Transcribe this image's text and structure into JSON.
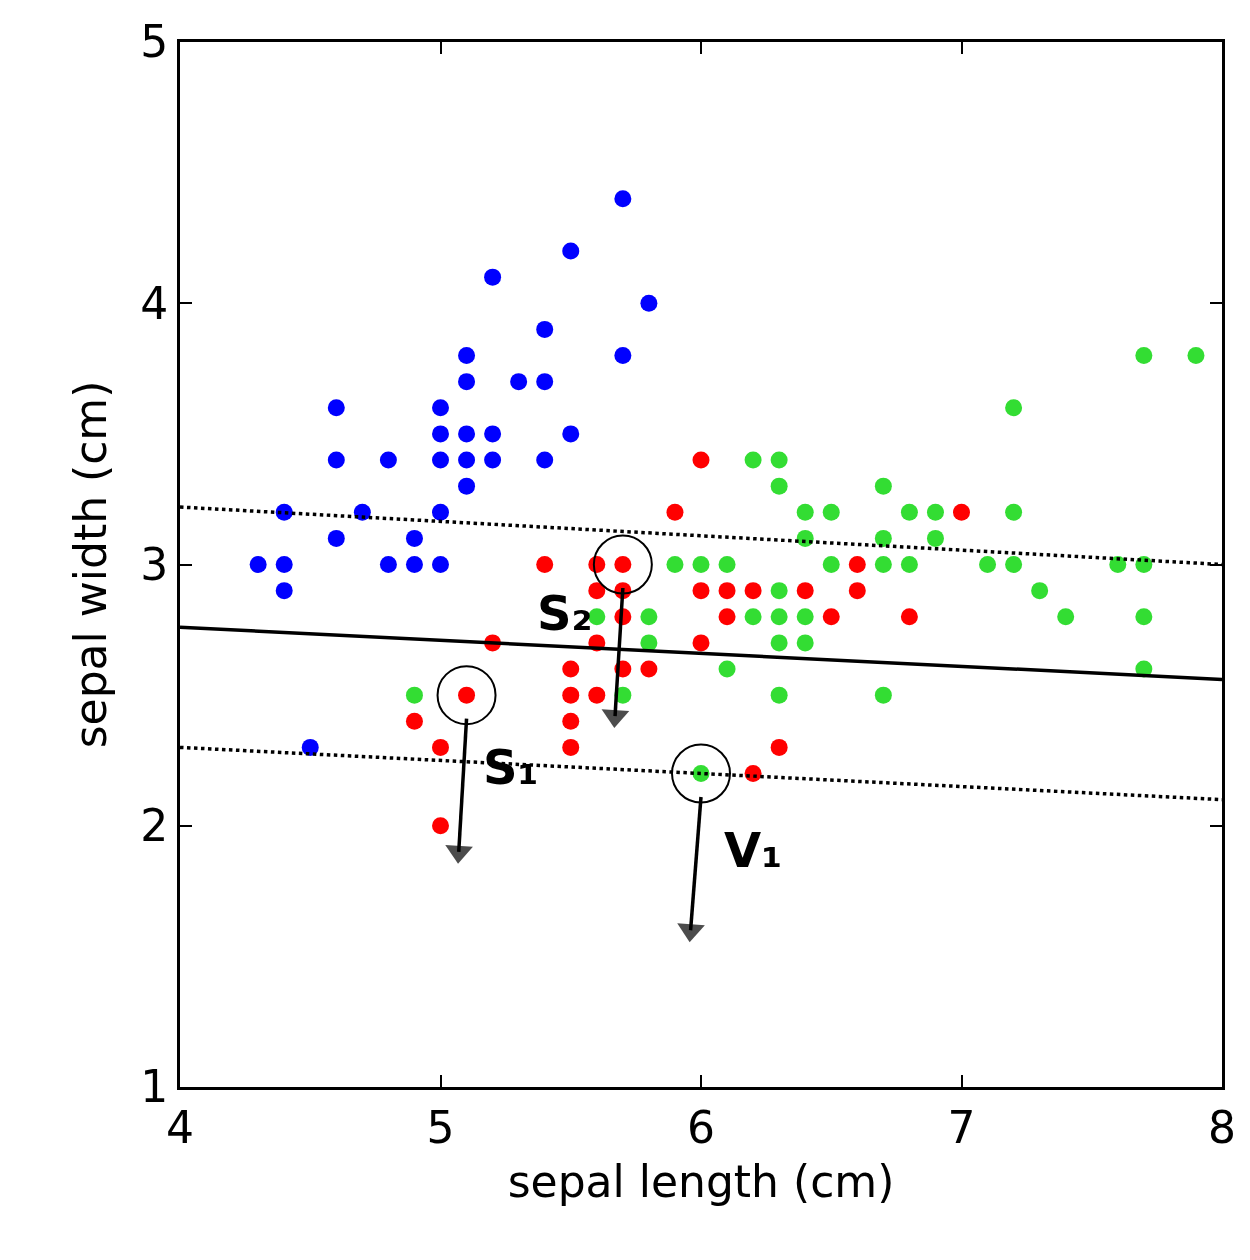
{
  "chart_data": {
    "type": "scatter",
    "xlabel": "sepal length (cm)",
    "ylabel": "sepal width (cm)",
    "xlim": [
      4,
      8
    ],
    "ylim": [
      1,
      5
    ],
    "xticks": [
      4,
      5,
      6,
      7,
      8
    ],
    "yticks": [
      1,
      2,
      3,
      4,
      5
    ],
    "marker": "circle",
    "series": [
      {
        "color": "#0000ff",
        "x": [
          5.1,
          4.9,
          4.7,
          4.6,
          5.0,
          5.4,
          4.6,
          5.0,
          4.4,
          4.9,
          5.4,
          4.8,
          4.8,
          4.3,
          5.8,
          5.7,
          5.7,
          5.1,
          5.4,
          5.1,
          5.1,
          5.0,
          5.2,
          5.2,
          5.2,
          5.5,
          5.0,
          5.5,
          4.4,
          5.1,
          4.5,
          4.4,
          5.3,
          4.6,
          5.0
        ],
        "values": [
          3.5,
          3.0,
          3.2,
          3.1,
          3.6,
          3.9,
          3.4,
          3.4,
          2.9,
          3.1,
          3.7,
          3.4,
          3.0,
          3.0,
          4.0,
          4.4,
          3.8,
          3.8,
          3.4,
          3.7,
          3.3,
          3.0,
          3.5,
          3.4,
          4.1,
          4.2,
          3.2,
          3.5,
          3.0,
          3.4,
          2.3,
          3.2,
          3.7,
          3.6,
          3.5
        ]
      },
      {
        "color": "#ff0000",
        "x": [
          7.0,
          5.5,
          6.5,
          5.7,
          4.9,
          6.6,
          5.2,
          5.0,
          6.1,
          5.6,
          6.2,
          5.6,
          5.9,
          6.1,
          6.4,
          6.6,
          6.8,
          6.0,
          5.7,
          5.5,
          6.0,
          5.4,
          6.0,
          6.3,
          5.6,
          5.5,
          5.5,
          5.8,
          5.0,
          5.6,
          5.7,
          5.7,
          6.2,
          5.1
        ],
        "values": [
          3.2,
          2.3,
          2.8,
          2.8,
          2.4,
          2.9,
          2.7,
          2.0,
          2.9,
          2.9,
          2.2,
          2.5,
          3.2,
          2.8,
          2.9,
          3.0,
          2.8,
          2.9,
          2.6,
          2.4,
          2.7,
          3.0,
          3.4,
          2.3,
          3.0,
          2.5,
          2.6,
          2.6,
          2.3,
          2.7,
          3.0,
          2.9,
          2.9,
          2.5
        ]
      },
      {
        "color": "#33dd33",
        "x": [
          6.3,
          5.8,
          7.1,
          6.3,
          6.5,
          7.6,
          4.9,
          7.3,
          6.7,
          7.2,
          6.5,
          6.4,
          6.8,
          5.7,
          5.8,
          6.4,
          7.7,
          7.7,
          6.0,
          6.9,
          5.6,
          7.7,
          6.3,
          6.7,
          7.2,
          6.2,
          6.1,
          6.4,
          7.2,
          7.4,
          7.9,
          6.3,
          6.1,
          7.7,
          6.3,
          6.4,
          6.0,
          6.9,
          6.7,
          6.8,
          6.7,
          6.3,
          6.2,
          5.9
        ],
        "values": [
          3.3,
          2.7,
          3.0,
          2.9,
          3.0,
          3.0,
          2.5,
          2.9,
          2.5,
          3.6,
          3.2,
          2.7,
          3.0,
          2.5,
          2.8,
          3.2,
          3.8,
          2.6,
          2.2,
          3.2,
          2.8,
          2.8,
          2.7,
          3.3,
          3.2,
          2.8,
          3.0,
          2.8,
          3.0,
          2.8,
          3.8,
          2.8,
          2.6,
          3.0,
          3.4,
          3.1,
          3.0,
          3.1,
          3.1,
          3.2,
          3.0,
          2.5,
          3.4,
          3.0
        ]
      },
      {
        "color": "#000000",
        "marker": "circle",
        "x": [
          5.1,
          5.7,
          6.0
        ],
        "values": [
          2.5,
          3.0,
          2.2
        ]
      },
      {
        "type": "line",
        "color": "#000000",
        "marker": "none",
        "line_style": "solid",
        "x": [
          4,
          8
        ],
        "values": [
          2.76,
          2.56
        ]
      },
      {
        "type": "line",
        "color": "#000000",
        "marker": "none",
        "line_style": "dotted",
        "x": [
          4,
          8
        ],
        "values": [
          3.22,
          3.0
        ]
      },
      {
        "type": "line",
        "color": "#000000",
        "marker": "none",
        "line_style": "dotted",
        "x": [
          4,
          8
        ],
        "values": [
          2.3,
          2.1
        ]
      },
      {
        "type": "line",
        "color": "#000000",
        "line_style": "solid",
        "marker": "triangle",
        "x": [
          5.1,
          5.07
        ],
        "values": [
          2.41,
          1.9
        ]
      },
      {
        "type": "line",
        "color": "#000000",
        "line_style": "solid",
        "marker": "triangle",
        "x": [
          5.7,
          5.67
        ],
        "values": [
          2.91,
          2.42
        ]
      },
      {
        "type": "line",
        "color": "#000000",
        "line_style": "solid",
        "marker": "triangle",
        "x": [
          6.0,
          5.96
        ],
        "values": [
          2.11,
          1.6
        ]
      }
    ],
    "annotations": [
      {
        "text": "S₁",
        "x": 5.1,
        "y": 2.5
      },
      {
        "text": "S₂",
        "x": 5.7,
        "y": 3.0
      },
      {
        "text": "V₁",
        "x": 6.0,
        "y": 2.2
      }
    ]
  }
}
